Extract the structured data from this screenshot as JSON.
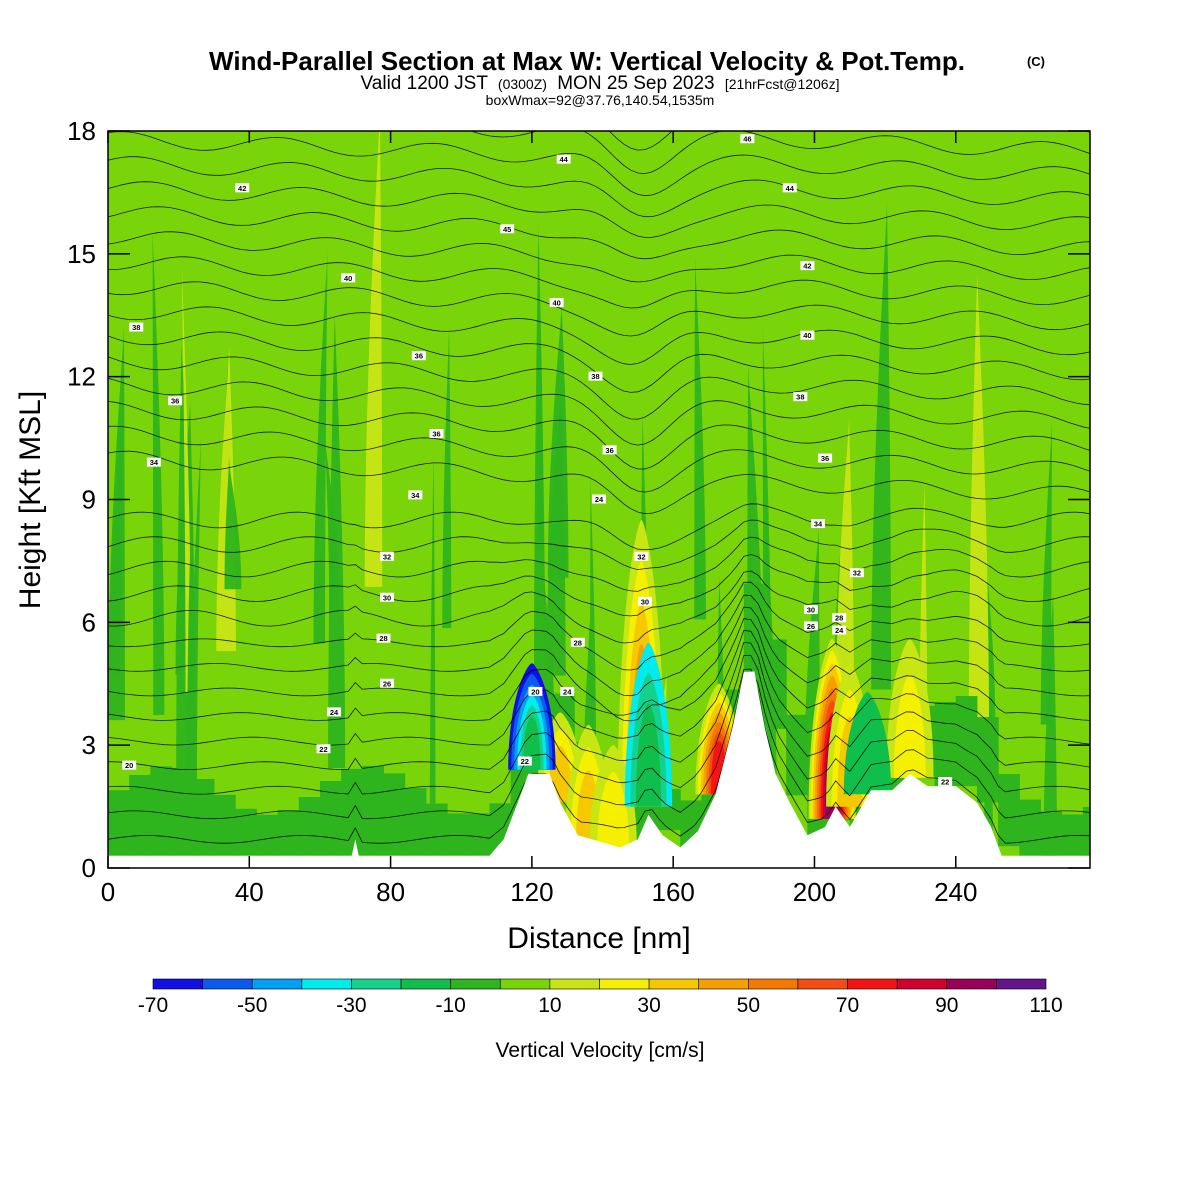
{
  "header": {
    "title": "Wind-Parallel Section at Max W: Vertical Velocity & Pot.Temp.",
    "copyright": "(C)",
    "valid_prefix": "Valid 1200 JST",
    "valid_utc": "(0300Z)",
    "valid_date": "MON 25 Sep 2023",
    "forecast": "[21hrFcst@1206z]",
    "box_info": "boxWmax=92@37.76,140.54,1535m"
  },
  "chart_data": {
    "type": "heatmap",
    "xlabel": "Distance [nm]",
    "ylabel": "Height [Kft MSL]",
    "xlim": [
      0,
      278
    ],
    "ylim": [
      0,
      18
    ],
    "x_ticks": [
      "0",
      "40",
      "80",
      "120",
      "160",
      "200",
      "240"
    ],
    "x_tick_values": [
      0,
      40,
      80,
      120,
      160,
      200,
      240
    ],
    "y_ticks": [
      "0",
      "3",
      "6",
      "9",
      "12",
      "15",
      "18"
    ],
    "y_tick_values": [
      0,
      3,
      6,
      9,
      12,
      15,
      18
    ],
    "colorbar": {
      "label": "Vertical Velocity [cm/s]",
      "tick_labels": [
        "-70",
        "-50",
        "-30",
        "-10",
        "10",
        "30",
        "50",
        "70",
        "90",
        "110"
      ],
      "bounds": [
        -70,
        -60,
        -50,
        -40,
        -30,
        -20,
        -10,
        0,
        10,
        20,
        30,
        40,
        50,
        60,
        70,
        80,
        90,
        100,
        110
      ],
      "colors": [
        "#1010e6",
        "#0a5af0",
        "#00a0f5",
        "#00ebeb",
        "#14d28c",
        "#0fbe4b",
        "#2eb41c",
        "#7ad40a",
        "#c8e614",
        "#f5f000",
        "#f5c800",
        "#f5a000",
        "#f57800",
        "#f54b14",
        "#f51414",
        "#d2002d",
        "#9b005a",
        "#64148c"
      ]
    },
    "background_value_range": [
      0,
      10
    ],
    "terrain_profile": [
      {
        "x": 0,
        "height": 0.3
      },
      {
        "x": 60,
        "height": 0.3
      },
      {
        "x": 69,
        "height": 0.3
      },
      {
        "x": 70,
        "height": 0.7
      },
      {
        "x": 71,
        "height": 0.3
      },
      {
        "x": 108,
        "height": 0.3
      },
      {
        "x": 112,
        "height": 0.7
      },
      {
        "x": 116,
        "height": 1.6
      },
      {
        "x": 119,
        "height": 2.3
      },
      {
        "x": 125,
        "height": 2.3
      },
      {
        "x": 128,
        "height": 1.6
      },
      {
        "x": 133,
        "height": 0.8
      },
      {
        "x": 145,
        "height": 0.5
      },
      {
        "x": 150,
        "height": 0.7
      },
      {
        "x": 153,
        "height": 1.3
      },
      {
        "x": 157,
        "height": 0.8
      },
      {
        "x": 162,
        "height": 0.5
      },
      {
        "x": 167,
        "height": 0.9
      },
      {
        "x": 172,
        "height": 1.8
      },
      {
        "x": 177,
        "height": 3.5
      },
      {
        "x": 180,
        "height": 4.8
      },
      {
        "x": 183,
        "height": 4.8
      },
      {
        "x": 186,
        "height": 3.4
      },
      {
        "x": 189,
        "height": 2.3
      },
      {
        "x": 193,
        "height": 1.6
      },
      {
        "x": 198,
        "height": 0.8
      },
      {
        "x": 203,
        "height": 1.0
      },
      {
        "x": 206,
        "height": 1.5
      },
      {
        "x": 210,
        "height": 1.0
      },
      {
        "x": 216,
        "height": 1.9
      },
      {
        "x": 222,
        "height": 1.9
      },
      {
        "x": 227,
        "height": 2.3
      },
      {
        "x": 232,
        "height": 2.0
      },
      {
        "x": 240,
        "height": 2.0
      },
      {
        "x": 246,
        "height": 1.6
      },
      {
        "x": 250,
        "height": 1.0
      },
      {
        "x": 253,
        "height": 0.3
      },
      {
        "x": 278,
        "height": 0.3
      }
    ],
    "updraft_cores": [
      {
        "x": 151,
        "height_bottom": 1.5,
        "height_top": 8.5,
        "max_value": 45
      },
      {
        "x": 173,
        "height_bottom": 1.8,
        "height_top": 4.5,
        "max_value": 80
      },
      {
        "x": 205,
        "height_bottom": 1.2,
        "height_top": 5.6,
        "max_value": 92
      },
      {
        "x": 210,
        "height_bottom": 1.5,
        "height_top": 5.0,
        "max_value": 40
      },
      {
        "x": 227,
        "height_bottom": 2.2,
        "height_top": 5.6,
        "max_value": 30
      },
      {
        "x": 128,
        "height_bottom": 1.6,
        "height_top": 3.8,
        "max_value": 40
      },
      {
        "x": 136,
        "height_bottom": 0.5,
        "height_top": 3.5,
        "max_value": 40
      },
      {
        "x": 143,
        "height_bottom": 0.5,
        "height_top": 3.0,
        "max_value": 30
      }
    ],
    "downdraft_cores": [
      {
        "x": 120,
        "height_bottom": 2.4,
        "height_top": 5.0,
        "min_value": -70
      },
      {
        "x": 153,
        "height_bottom": 1.5,
        "height_top": 5.5,
        "min_value": -35
      },
      {
        "x": 215,
        "height_bottom": 1.8,
        "height_top": 4.3,
        "min_value": -20
      }
    ],
    "potential_temperature_labels": [
      {
        "text": "20",
        "x": 6,
        "height": 2.5
      },
      {
        "text": "22",
        "x": 61,
        "height": 2.9
      },
      {
        "text": "24",
        "x": 64,
        "height": 3.8
      },
      {
        "text": "26",
        "x": 79,
        "height": 4.5
      },
      {
        "text": "28",
        "x": 78,
        "height": 5.6
      },
      {
        "text": "30",
        "x": 79,
        "height": 6.6
      },
      {
        "text": "32",
        "x": 79,
        "height": 7.6
      },
      {
        "text": "34",
        "x": 13,
        "height": 9.9
      },
      {
        "text": "34",
        "x": 87,
        "height": 9.1
      },
      {
        "text": "36",
        "x": 19,
        "height": 11.4
      },
      {
        "text": "36",
        "x": 93,
        "height": 10.6
      },
      {
        "text": "36",
        "x": 88,
        "height": 12.5
      },
      {
        "text": "38",
        "x": 8,
        "height": 13.2
      },
      {
        "text": "40",
        "x": 68,
        "height": 14.4
      },
      {
        "text": "40",
        "x": 127,
        "height": 13.8
      },
      {
        "text": "42",
        "x": 38,
        "height": 16.6
      },
      {
        "text": "44",
        "x": 129,
        "height": 17.3
      },
      {
        "text": "44",
        "x": 193,
        "height": 16.6
      },
      {
        "text": "42",
        "x": 198,
        "height": 14.7
      },
      {
        "text": "40",
        "x": 198,
        "height": 13.0
      },
      {
        "text": "38",
        "x": 196,
        "height": 11.5
      },
      {
        "text": "36",
        "x": 203,
        "height": 10.0
      },
      {
        "text": "34",
        "x": 201,
        "height": 8.4
      },
      {
        "text": "32",
        "x": 212,
        "height": 7.2
      },
      {
        "text": "30",
        "x": 199,
        "height": 6.3
      },
      {
        "text": "28",
        "x": 207,
        "height": 6.1
      },
      {
        "text": "26",
        "x": 199,
        "height": 5.9
      },
      {
        "text": "24",
        "x": 207,
        "height": 5.8
      },
      {
        "text": "22",
        "x": 118,
        "height": 2.6
      },
      {
        "text": "20",
        "x": 121,
        "height": 4.3
      },
      {
        "text": "24",
        "x": 130,
        "height": 4.3
      },
      {
        "text": "28",
        "x": 133,
        "height": 5.5
      },
      {
        "text": "30",
        "x": 152,
        "height": 6.5
      },
      {
        "text": "32",
        "x": 151,
        "height": 7.6
      },
      {
        "text": "24",
        "x": 139,
        "height": 9.0
      },
      {
        "text": "36",
        "x": 142,
        "height": 10.2
      },
      {
        "text": "38",
        "x": 138,
        "height": 12.0
      },
      {
        "text": "45",
        "x": 113,
        "height": 15.6
      },
      {
        "text": "46",
        "x": 181,
        "height": 17.8
      },
      {
        "text": "22",
        "x": 237,
        "height": 2.1
      }
    ]
  }
}
